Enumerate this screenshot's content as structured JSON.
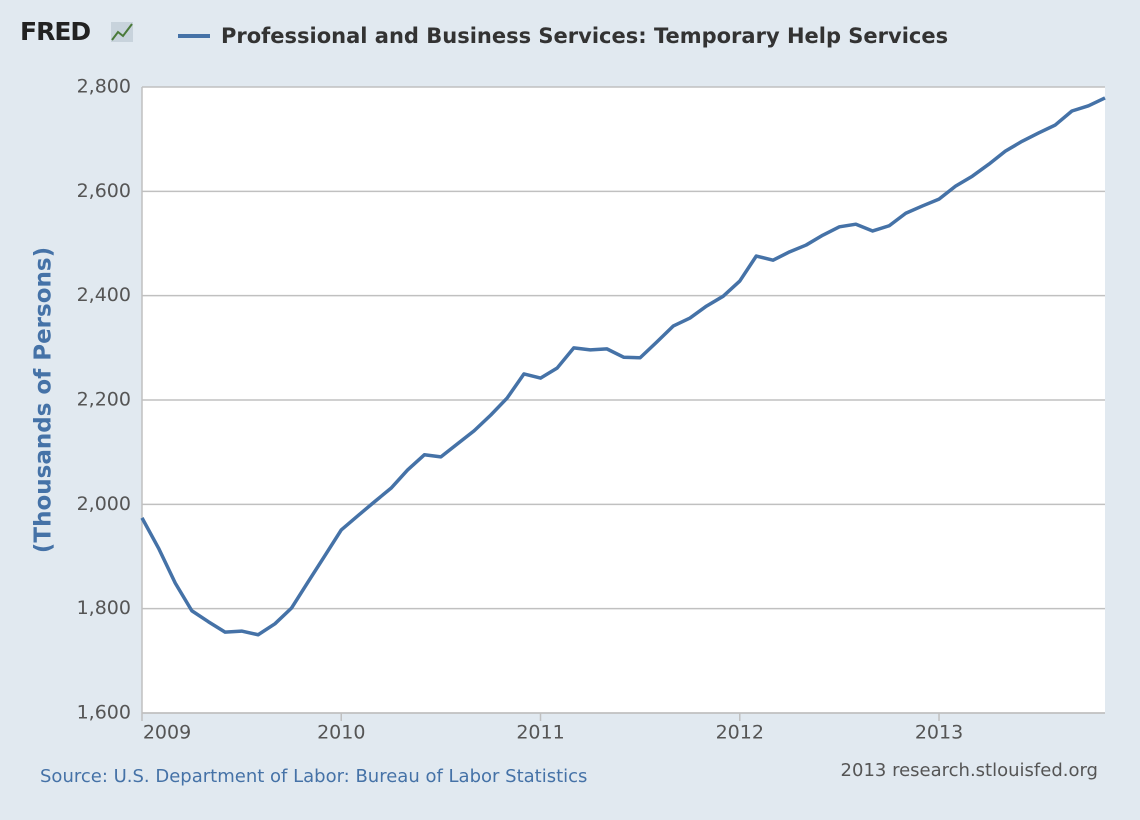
{
  "chart_data": {
    "type": "line",
    "logo": "FRED",
    "ylabel": "(Thousands of Persons)",
    "source": "Source: U.S. Department of Labor: Bureau of Labor Statistics",
    "credit": "2013 research.stlouisfed.org",
    "x": [
      2009,
      2009.083,
      2009.167,
      2009.25,
      2009.333,
      2009.417,
      2009.5,
      2009.583,
      2009.667,
      2009.75,
      2009.833,
      2009.917,
      2010,
      2010.083,
      2010.167,
      2010.25,
      2010.333,
      2010.417,
      2010.5,
      2010.583,
      2010.667,
      2010.75,
      2010.833,
      2010.917,
      2011,
      2011.083,
      2011.167,
      2011.25,
      2011.333,
      2011.417,
      2011.5,
      2011.583,
      2011.667,
      2011.75,
      2011.833,
      2011.917,
      2012,
      2012.083,
      2012.167,
      2012.25,
      2012.333,
      2012.417,
      2012.5,
      2012.583,
      2012.667,
      2012.75,
      2012.833,
      2012.917,
      2013,
      2013.083,
      2013.167,
      2013.25,
      2013.333,
      2013.417,
      2013.5,
      2013.583,
      2013.667,
      2013.75,
      2013.833
    ],
    "series": [
      {
        "name": "Professional and Business Services: Temporary Help Services",
        "color": "#4572a7",
        "values": [
          1974,
          1916,
          1849,
          1796,
          1775,
          1755,
          1757,
          1750,
          1771,
          1801,
          1851,
          1901,
          1951,
          1978,
          2005,
          2031,
          2066,
          2095,
          2091,
          2116,
          2141,
          2171,
          2204,
          2250,
          2242,
          2261,
          2300,
          2296,
          2298,
          2282,
          2281,
          2311,
          2342,
          2357,
          2380,
          2399,
          2428,
          2476,
          2468,
          2484,
          2497,
          2516,
          2532,
          2537,
          2524,
          2534,
          2558,
          2572,
          2585,
          2610,
          2629,
          2652,
          2677,
          2696,
          2712,
          2727,
          2754,
          2764,
          2779
        ]
      }
    ],
    "xlim": [
      2009,
      2013.833
    ],
    "xticks": [
      2009,
      2010,
      2011,
      2012,
      2013
    ],
    "ylim": [
      1600,
      2800
    ],
    "yticks": [
      {
        "value": 1600,
        "label": "1,600"
      },
      {
        "value": 1800,
        "label": "1,800"
      },
      {
        "value": 2000,
        "label": "2,000"
      },
      {
        "value": 2200,
        "label": "2,200"
      },
      {
        "value": 2400,
        "label": "2,400"
      },
      {
        "value": 2600,
        "label": "2,600"
      },
      {
        "value": 2800,
        "label": "2,800"
      }
    ],
    "grid": true
  }
}
